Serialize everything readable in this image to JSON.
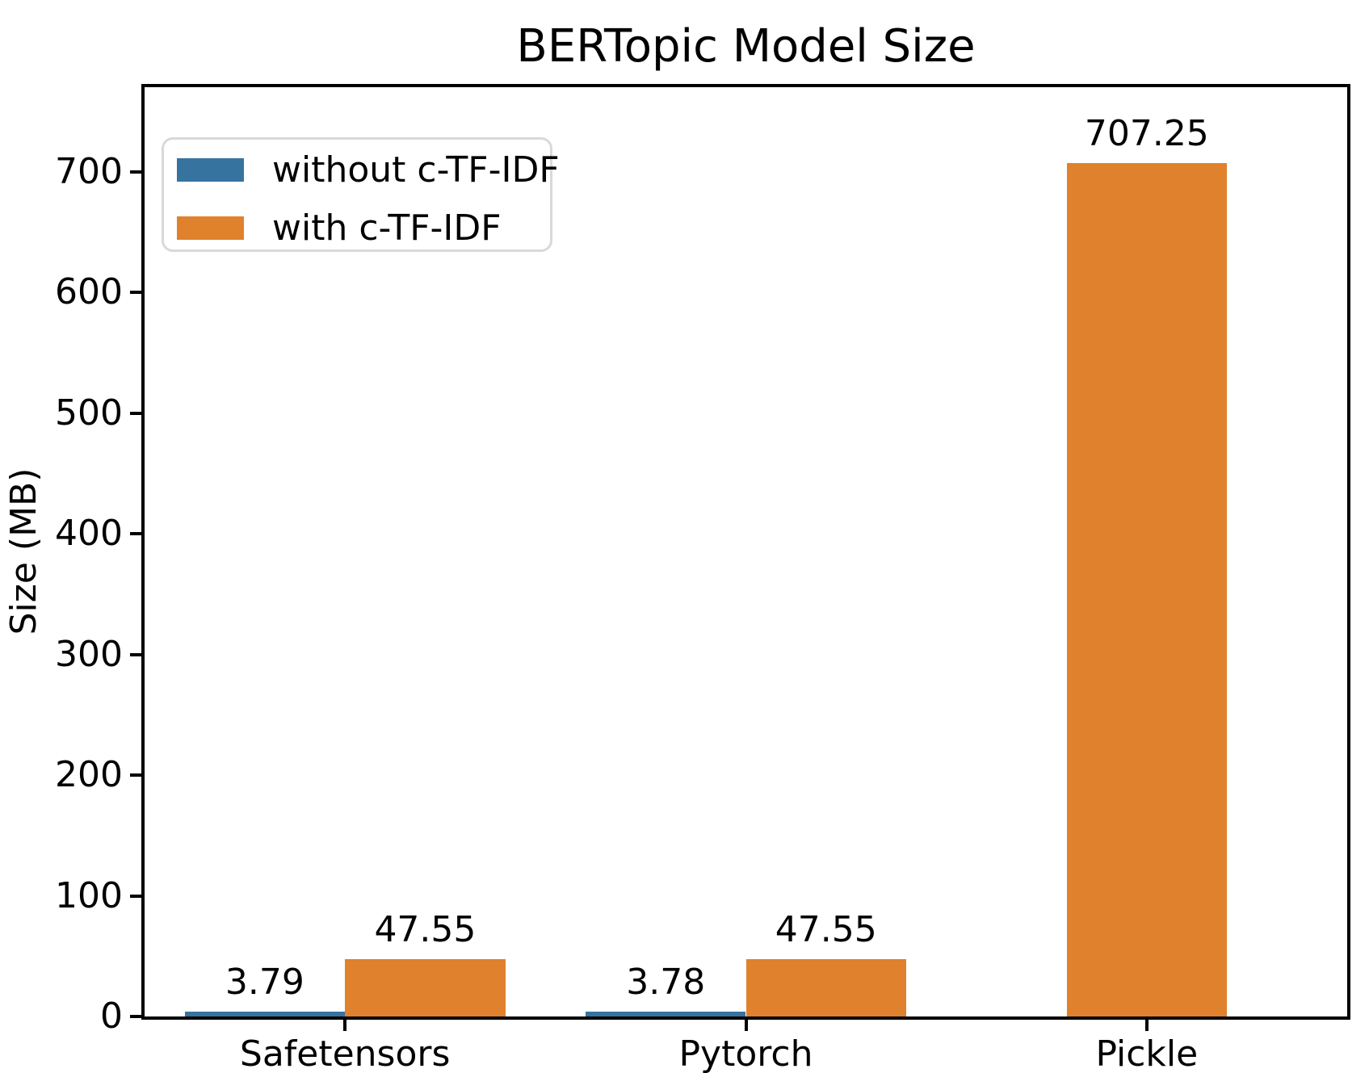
{
  "figure": {
    "title": "BERTopic Model Size",
    "ylabel": "Size (MB)"
  },
  "legend": {
    "items": [
      {
        "label": "without c-TF-IDF",
        "color": "#37739f"
      },
      {
        "label": "with c-TF-IDF",
        "color": "#e0812d"
      }
    ]
  },
  "chart_data": {
    "type": "bar",
    "title": "BERTopic Model Size",
    "xlabel": "",
    "ylabel": "Size (MB)",
    "categories": [
      "Safetensors",
      "Pytorch",
      "Pickle"
    ],
    "series": [
      {
        "name": "without c-TF-IDF",
        "color": "#37739f",
        "values": [
          3.79,
          3.78,
          null
        ],
        "labels": [
          "3.79",
          "3.78",
          null
        ]
      },
      {
        "name": "with c-TF-IDF",
        "color": "#e0812d",
        "values": [
          47.55,
          47.55,
          707.25
        ],
        "labels": [
          "47.55",
          "47.55",
          "707.25"
        ]
      }
    ],
    "yticks": [
      0,
      100,
      200,
      300,
      400,
      500,
      600,
      700
    ],
    "ylim": [
      0,
      770
    ],
    "bar_width": 0.4,
    "grid": false,
    "legend_position": "upper left"
  }
}
